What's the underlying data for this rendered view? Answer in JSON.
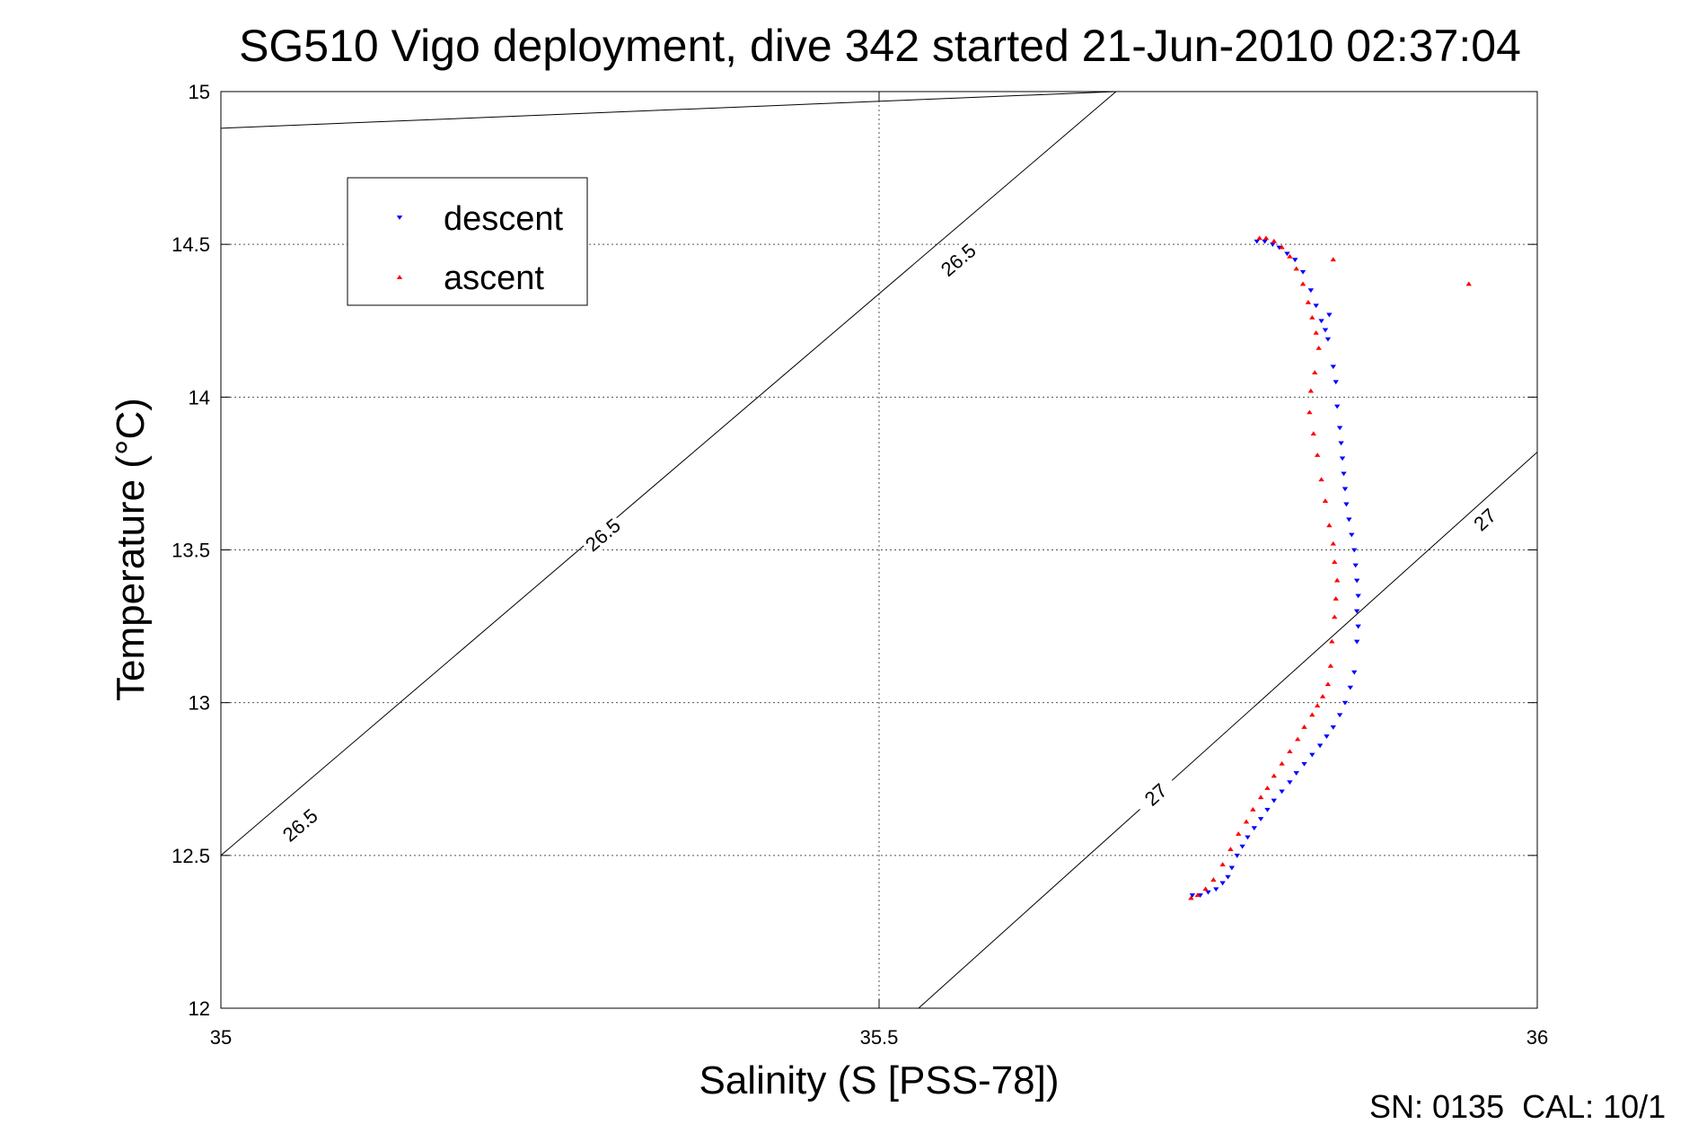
{
  "chart_data": {
    "type": "scatter",
    "title": "SG510 Vigo deployment, dive 342 started 21-Jun-2010 02:37:04",
    "xlabel": "Salinity (S [PSS-78])",
    "ylabel": "Temperature (°C)",
    "xlim": [
      35,
      36
    ],
    "ylim": [
      12,
      15
    ],
    "x_ticks": [
      "35",
      "35.5",
      "36"
    ],
    "y_ticks": [
      "12",
      "12.5",
      "13",
      "13.5",
      "14",
      "14.5",
      "15"
    ],
    "grid": true,
    "legend_position": "top-left",
    "colors": {
      "descent": "#0000ff",
      "ascent": "#ff0000",
      "isopycnal": "#000000"
    },
    "isopycnals": [
      {
        "label": "26.5",
        "line": [
          [
            35,
            14.88
          ],
          [
            35.68,
            15
          ],
          [
            35,
            12.5
          ],
          [
            35.68,
            15
          ]
        ],
        "label_points": [
          [
            35.06,
            12.6
          ],
          [
            35.29,
            13.55
          ],
          [
            35.56,
            14.45
          ]
        ]
      },
      {
        "label": "27",
        "line": [
          [
            35.53,
            12
          ],
          [
            36,
            13.82
          ]
        ],
        "label_points": [
          [
            35.71,
            12.7
          ],
          [
            35.96,
            13.6
          ]
        ]
      }
    ],
    "series": [
      {
        "name": "descent",
        "marker": "down-triangle",
        "points": [
          [
            35.787,
            14.51
          ],
          [
            35.793,
            14.51
          ],
          [
            35.799,
            14.5
          ],
          [
            35.804,
            14.49
          ],
          [
            35.81,
            14.47
          ],
          [
            35.816,
            14.45
          ],
          [
            35.822,
            14.41
          ],
          [
            35.828,
            14.35
          ],
          [
            35.832,
            14.3
          ],
          [
            35.836,
            14.25
          ],
          [
            35.839,
            14.22
          ],
          [
            35.841,
            14.19
          ],
          [
            35.842,
            14.27
          ],
          [
            35.845,
            14.1
          ],
          [
            35.847,
            14.05
          ],
          [
            35.848,
            13.97
          ],
          [
            35.85,
            13.9
          ],
          [
            35.851,
            13.85
          ],
          [
            35.852,
            13.8
          ],
          [
            35.853,
            13.75
          ],
          [
            35.854,
            13.7
          ],
          [
            35.855,
            13.65
          ],
          [
            35.857,
            13.6
          ],
          [
            35.859,
            13.55
          ],
          [
            35.861,
            13.5
          ],
          [
            35.862,
            13.45
          ],
          [
            35.863,
            13.4
          ],
          [
            35.864,
            13.35
          ],
          [
            35.863,
            13.3
          ],
          [
            35.864,
            13.25
          ],
          [
            35.863,
            13.2
          ],
          [
            35.861,
            13.1
          ],
          [
            35.858,
            13.05
          ],
          [
            35.854,
            13.0
          ],
          [
            35.85,
            12.96
          ],
          [
            35.845,
            12.92
          ],
          [
            35.84,
            12.89
          ],
          [
            35.835,
            12.86
          ],
          [
            35.829,
            12.83
          ],
          [
            35.823,
            12.8
          ],
          [
            35.817,
            12.77
          ],
          [
            35.812,
            12.74
          ],
          [
            35.806,
            12.71
          ],
          [
            35.8,
            12.68
          ],
          [
            35.795,
            12.65
          ],
          [
            35.79,
            12.62
          ],
          [
            35.785,
            12.59
          ],
          [
            35.78,
            12.56
          ],
          [
            35.776,
            12.53
          ],
          [
            35.772,
            12.5
          ],
          [
            35.768,
            12.46
          ],
          [
            35.765,
            12.43
          ],
          [
            35.761,
            12.41
          ],
          [
            35.756,
            12.39
          ],
          [
            35.75,
            12.38
          ],
          [
            35.744,
            12.37
          ],
          [
            35.738,
            12.37
          ]
        ]
      },
      {
        "name": "ascent",
        "marker": "up-triangle",
        "points": [
          [
            35.789,
            14.52
          ],
          [
            35.794,
            14.52
          ],
          [
            35.8,
            14.51
          ],
          [
            35.806,
            14.49
          ],
          [
            35.812,
            14.46
          ],
          [
            35.817,
            14.42
          ],
          [
            35.822,
            14.37
          ],
          [
            35.826,
            14.31
          ],
          [
            35.829,
            14.26
          ],
          [
            35.832,
            14.21
          ],
          [
            35.834,
            14.16
          ],
          [
            35.831,
            14.08
          ],
          [
            35.828,
            14.02
          ],
          [
            35.827,
            13.95
          ],
          [
            35.83,
            13.88
          ],
          [
            35.833,
            13.81
          ],
          [
            35.836,
            13.73
          ],
          [
            35.839,
            13.66
          ],
          [
            35.842,
            13.58
          ],
          [
            35.845,
            13.52
          ],
          [
            35.846,
            13.46
          ],
          [
            35.848,
            13.4
          ],
          [
            35.847,
            13.34
          ],
          [
            35.846,
            13.28
          ],
          [
            35.844,
            13.2
          ],
          [
            35.843,
            13.12
          ],
          [
            35.841,
            13.06
          ],
          [
            35.837,
            13.02
          ],
          [
            35.833,
            12.99
          ],
          [
            35.829,
            12.96
          ],
          [
            35.823,
            12.92
          ],
          [
            35.818,
            12.88
          ],
          [
            35.812,
            12.84
          ],
          [
            35.806,
            12.8
          ],
          [
            35.8,
            12.76
          ],
          [
            35.795,
            12.72
          ],
          [
            35.79,
            12.69
          ],
          [
            35.784,
            12.65
          ],
          [
            35.779,
            12.61
          ],
          [
            35.773,
            12.57
          ],
          [
            35.767,
            12.52
          ],
          [
            35.761,
            12.47
          ],
          [
            35.754,
            12.42
          ],
          [
            35.748,
            12.39
          ],
          [
            35.742,
            12.37
          ],
          [
            35.737,
            12.36
          ],
          [
            35.845,
            14.45
          ],
          [
            35.948,
            14.37
          ]
        ]
      }
    ]
  },
  "footer": {
    "text": "SN: 0135  CAL: 10/1"
  }
}
